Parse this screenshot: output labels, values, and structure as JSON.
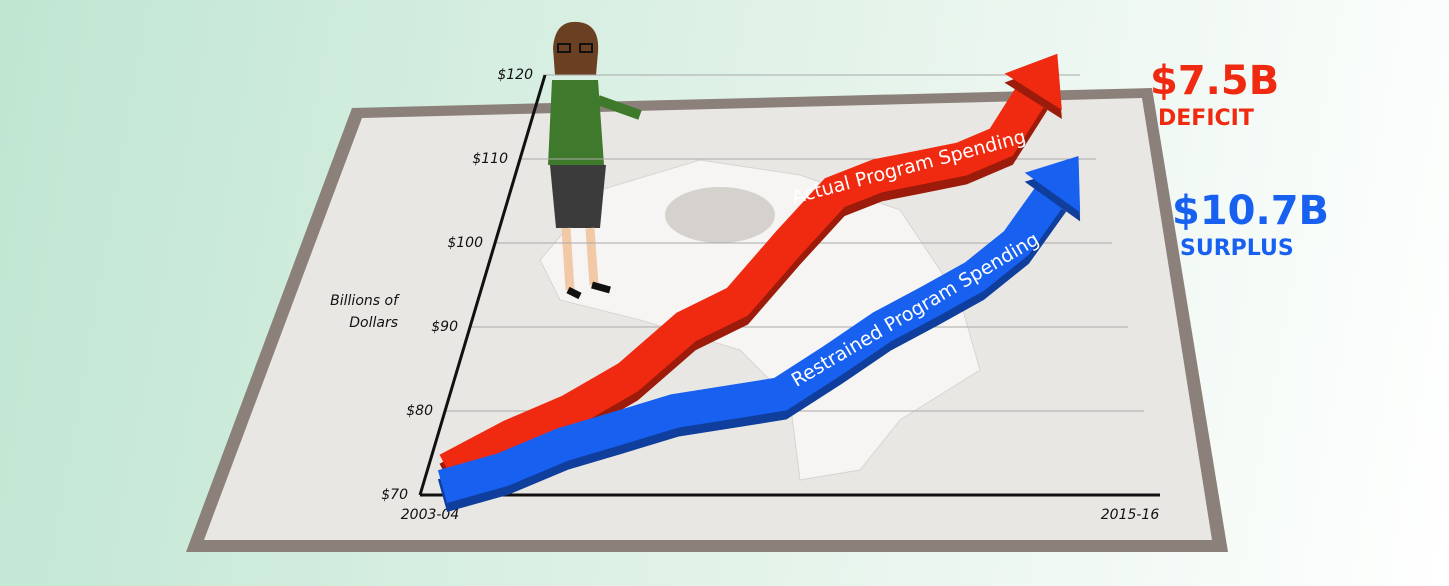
{
  "chart_data": {
    "type": "line",
    "y_axis_label": "Billions of Dollars",
    "categories": [
      "2003-04",
      null,
      null,
      null,
      null,
      null,
      null,
      null,
      null,
      null,
      null,
      null,
      "2015-16"
    ],
    "ylim": [
      70,
      120
    ],
    "yticks": [
      {
        "value": 70,
        "label": "$70"
      },
      {
        "value": 80,
        "label": "$80"
      },
      {
        "value": 90,
        "label": "$90"
      },
      {
        "value": 100,
        "label": "$100"
      },
      {
        "value": 110,
        "label": "$110"
      },
      {
        "value": 120,
        "label": "$120"
      }
    ],
    "grid": true,
    "series": [
      {
        "name": "Actual Program Spending",
        "color": "#f02a10",
        "values": [
          73,
          77,
          80,
          84,
          90,
          93,
          100,
          106,
          108,
          109,
          110,
          112,
          118
        ]
      },
      {
        "name": "Restrained Program Spending",
        "color": "#1760f0",
        "values": [
          71,
          73,
          76,
          78,
          80,
          81,
          82,
          86,
          90,
          93,
          96,
          100,
          106
        ]
      }
    ],
    "annotations": [
      "$7.5B",
      "DEFICIT",
      "$10.7B",
      "SURPLUS"
    ]
  }
}
